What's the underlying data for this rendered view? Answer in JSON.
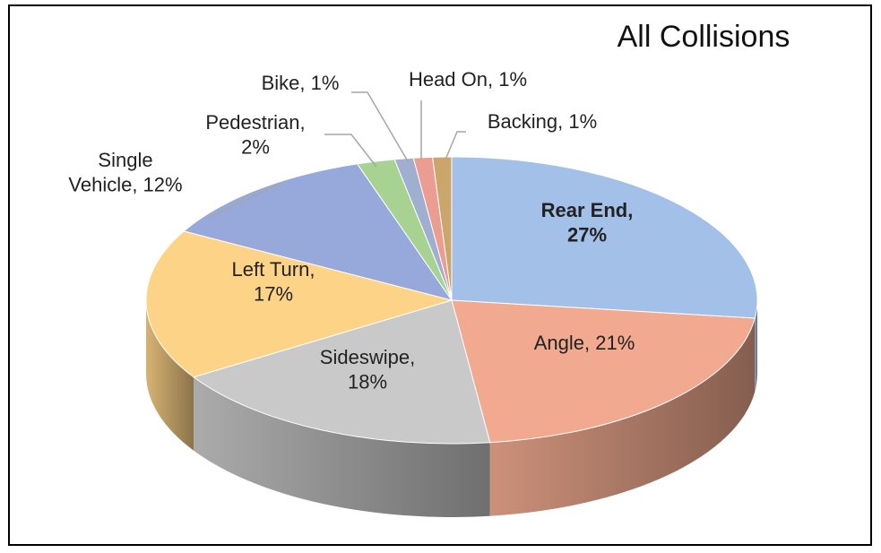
{
  "chart_data": {
    "type": "pie",
    "title": "All Collisions",
    "values": [
      27,
      21,
      18,
      17,
      12,
      2,
      1,
      1,
      1
    ],
    "value_labels": [
      "Rear End,\n27%",
      "Angle, 21%",
      "Sideswipe,\n18%",
      "Left Turn,\n17%",
      "Single\nVehicle, 12%",
      "Pedestrian,\n2%",
      "Bike, 1%",
      "Head On, 1%",
      "Backing, 1%"
    ],
    "colors": [
      "#a3c1e8",
      "#f1aa8f",
      "#c9c9c9",
      "#fdd387",
      "#97a8da",
      "#a8d291",
      "#a0afd0",
      "#eb9d91",
      "#caa66c"
    ]
  }
}
